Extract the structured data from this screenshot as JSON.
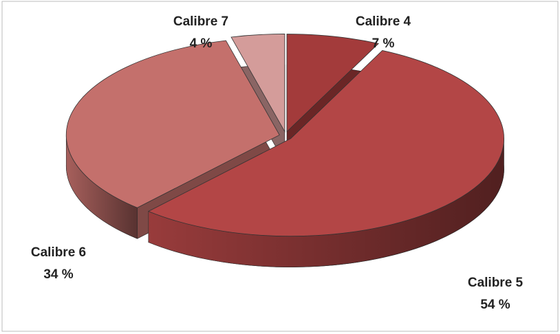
{
  "chart_data": {
    "type": "pie3d",
    "categories": [
      "Calibre 4",
      "Calibre 5",
      "Calibre 6",
      "Calibre 7"
    ],
    "values": [
      7,
      54,
      34,
      4
    ],
    "value_labels": [
      "7 %",
      "54 %",
      "34 %",
      "4 %"
    ],
    "colors": [
      "#a33b3b",
      "#b34646",
      "#c4706c",
      "#d49c9a"
    ]
  }
}
